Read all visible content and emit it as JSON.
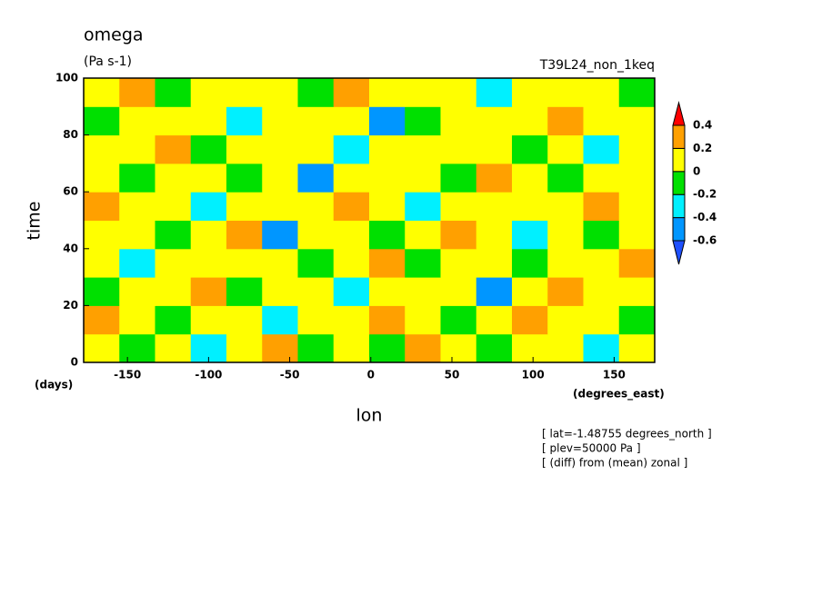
{
  "chart_data": {
    "type": "contour",
    "title": "omega",
    "units": "(Pa s-1)",
    "experiment": "T39L24_non_1keq",
    "ylabel": "time",
    "yunit": "(days)",
    "xlabel": "lon",
    "xunit": "(degrees_east)",
    "notes": [
      "[ lat=-1.48755 degrees_north ]",
      "[ plev=50000 Pa ]",
      "[ (diff) from (mean) zonal ]"
    ],
    "xlim": [
      -177,
      175
    ],
    "xticks": [
      -150,
      -100,
      -50,
      0,
      50,
      100,
      150
    ],
    "ylim": [
      0,
      100
    ],
    "yticks": [
      0,
      20,
      40,
      60,
      80,
      100
    ],
    "levels": [
      -0.6,
      -0.4,
      -0.2,
      0,
      0.2,
      0.4
    ],
    "colors": [
      "#1e50ff",
      "#0096ff",
      "#00f0ff",
      "#00e000",
      "#ffff00",
      "#ffa000",
      "#ff0000"
    ],
    "x": [
      -166,
      -144,
      -122,
      -100,
      -78,
      -56,
      -34,
      -12,
      10,
      32,
      54,
      76,
      98,
      120,
      142,
      164
    ],
    "y": [
      5,
      15,
      25,
      35,
      45,
      55,
      65,
      75,
      85,
      95
    ],
    "z": [
      [
        0.1,
        -0.1,
        0.1,
        -0.3,
        0.1,
        0.25,
        -0.1,
        0.1,
        -0.1,
        0.25,
        0.1,
        -0.1,
        0.1,
        0.1,
        -0.3,
        0.1
      ],
      [
        0.25,
        0.1,
        -0.1,
        0.1,
        0.1,
        -0.3,
        0.1,
        0.1,
        0.25,
        0.1,
        -0.1,
        0.1,
        0.25,
        0.1,
        0.1,
        -0.1
      ],
      [
        -0.1,
        0.1,
        0.1,
        0.25,
        -0.1,
        0.1,
        0.1,
        -0.3,
        0.1,
        0.1,
        0.1,
        -0.5,
        0.1,
        0.25,
        0.1,
        0.1
      ],
      [
        0.1,
        -0.3,
        0.1,
        0.1,
        0.1,
        0.1,
        -0.1,
        0.1,
        0.25,
        -0.1,
        0.1,
        0.1,
        -0.1,
        0.1,
        0.1,
        0.25
      ],
      [
        0.1,
        0.1,
        -0.1,
        0.1,
        0.25,
        -0.5,
        0.1,
        0.1,
        -0.1,
        0.1,
        0.25,
        0.1,
        -0.3,
        0.1,
        -0.1,
        0.1
      ],
      [
        0.25,
        0.1,
        0.1,
        -0.3,
        0.1,
        0.1,
        0.1,
        0.25,
        0.1,
        -0.3,
        0.1,
        0.1,
        0.1,
        0.1,
        0.25,
        0.1
      ],
      [
        0.1,
        -0.1,
        0.1,
        0.1,
        -0.1,
        0.1,
        -0.5,
        0.1,
        0.1,
        0.1,
        -0.1,
        0.25,
        0.1,
        -0.1,
        0.1,
        0.1
      ],
      [
        0.1,
        0.1,
        0.25,
        -0.1,
        0.1,
        0.1,
        0.1,
        -0.3,
        0.1,
        0.1,
        0.1,
        0.1,
        -0.1,
        0.1,
        -0.3,
        0.1
      ],
      [
        -0.1,
        0.1,
        0.1,
        0.1,
        -0.3,
        0.1,
        0.1,
        0.1,
        -0.5,
        -0.1,
        0.1,
        0.1,
        0.1,
        0.25,
        0.1,
        0.1
      ],
      [
        0.1,
        0.25,
        -0.1,
        0.1,
        0.1,
        0.1,
        -0.1,
        0.25,
        0.1,
        0.1,
        0.1,
        -0.3,
        0.1,
        0.1,
        0.1,
        -0.1
      ]
    ]
  }
}
